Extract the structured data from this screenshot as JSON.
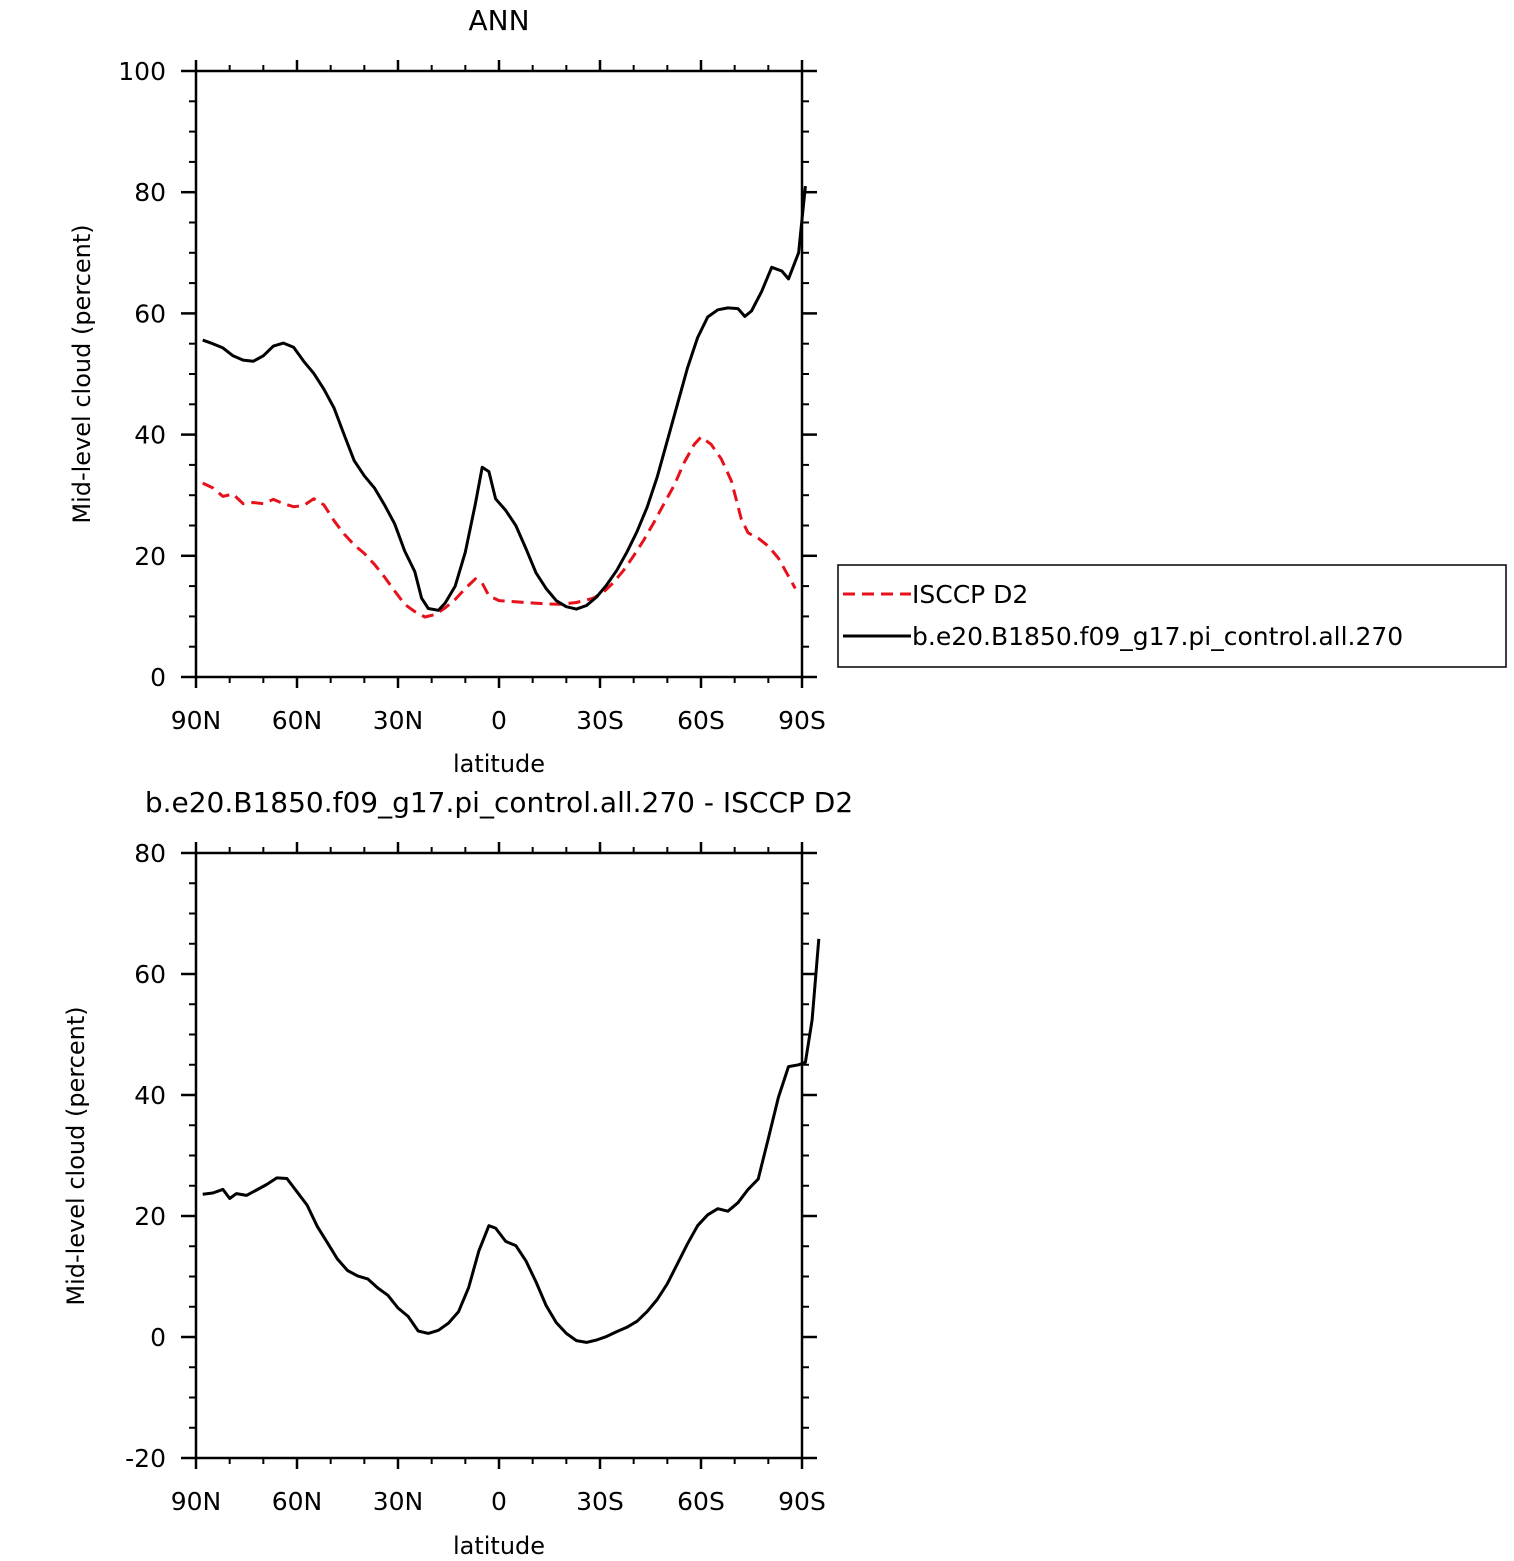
{
  "chart_data": [
    {
      "type": "line",
      "title": "ANN",
      "xlabel": "latitude",
      "ylabel": "Mid-level cloud (percent)",
      "xlim": [
        -90,
        90
      ],
      "ylim": [
        0,
        100
      ],
      "x_ticks": [
        -90,
        -60,
        -30,
        0,
        30,
        60,
        90
      ],
      "x_tick_labels": [
        "90N",
        "60N",
        "30N",
        "0",
        "30S",
        "60S",
        "90S"
      ],
      "y_ticks": [
        0,
        20,
        40,
        60,
        80,
        100
      ],
      "y_tick_labels": [
        "0",
        "20",
        "40",
        "60",
        "80",
        "100"
      ],
      "legend": "right",
      "series": [
        {
          "name": "ISCCP D2",
          "color": "#e8101a",
          "dash": "dashed",
          "points": [
            [
              -88,
              32
            ],
            [
              -85,
              31.2
            ],
            [
              -82,
              29.8
            ],
            [
              -79,
              30.2
            ],
            [
              -76,
              28.6
            ],
            [
              -73,
              28.8
            ],
            [
              -70,
              28.6
            ],
            [
              -67,
              29.3
            ],
            [
              -64,
              28.6
            ],
            [
              -61,
              28.1
            ],
            [
              -58,
              28.3
            ],
            [
              -55,
              29.4
            ],
            [
              -52,
              28.4
            ],
            [
              -49,
              25.8
            ],
            [
              -46,
              23.6
            ],
            [
              -43,
              21.8
            ],
            [
              -40,
              20.4
            ],
            [
              -37,
              18.6
            ],
            [
              -34,
              16.5
            ],
            [
              -31,
              14.2
            ],
            [
              -28,
              12.0
            ],
            [
              -25,
              10.8
            ],
            [
              -22,
              9.9
            ],
            [
              -19,
              10.3
            ],
            [
              -16,
              11.4
            ],
            [
              -13,
              12.8
            ],
            [
              -10,
              14.6
            ],
            [
              -7,
              16.2
            ],
            [
              -5,
              15.5
            ],
            [
              -3,
              13.4
            ],
            [
              0,
              12.6
            ],
            [
              3,
              12.5
            ],
            [
              8,
              12.3
            ],
            [
              13,
              12.1
            ],
            [
              18,
              12.0
            ],
            [
              23,
              12.3
            ],
            [
              28,
              13.0
            ],
            [
              31,
              14.0
            ],
            [
              34,
              15.6
            ],
            [
              37,
              17.6
            ],
            [
              40,
              20.0
            ],
            [
              43,
              22.6
            ],
            [
              46,
              25.5
            ],
            [
              49,
              28.6
            ],
            [
              52,
              31.6
            ],
            [
              55,
              35.4
            ],
            [
              58,
              38.4
            ],
            [
              60,
              39.6
            ],
            [
              63,
              38.4
            ],
            [
              66,
              36.0
            ],
            [
              69,
              32.4
            ],
            [
              72,
              26.0
            ],
            [
              74,
              23.8
            ],
            [
              77,
              22.9
            ],
            [
              80,
              21.6
            ],
            [
              83,
              19.6
            ],
            [
              85,
              17.6
            ],
            [
              88,
              14.6
            ]
          ]
        },
        {
          "name": "b.e20.B1850.f09_g17.pi_control.all.270",
          "color": "#000000",
          "dash": "solid",
          "points": [
            [
              -88,
              55.6
            ],
            [
              -85,
              55.0
            ],
            [
              -82,
              54.3
            ],
            [
              -79,
              53.0
            ],
            [
              -76,
              52.3
            ],
            [
              -73,
              52.1
            ],
            [
              -70,
              53.0
            ],
            [
              -67,
              54.6
            ],
            [
              -64,
              55.1
            ],
            [
              -61,
              54.4
            ],
            [
              -58,
              52.1
            ],
            [
              -55,
              50.1
            ],
            [
              -52,
              47.5
            ],
            [
              -49,
              44.4
            ],
            [
              -46,
              40.0
            ],
            [
              -43,
              35.7
            ],
            [
              -40,
              33.2
            ],
            [
              -37,
              31.2
            ],
            [
              -34,
              28.4
            ],
            [
              -31,
              25.3
            ],
            [
              -28,
              20.8
            ],
            [
              -25,
              17.4
            ],
            [
              -23,
              13.0
            ],
            [
              -21,
              11.3
            ],
            [
              -18,
              11.0
            ],
            [
              -16,
              12.2
            ],
            [
              -13,
              15.0
            ],
            [
              -10,
              20.6
            ],
            [
              -7,
              28.6
            ],
            [
              -5,
              34.6
            ],
            [
              -3,
              33.9
            ],
            [
              -1,
              29.4
            ],
            [
              2,
              27.5
            ],
            [
              5,
              25.0
            ],
            [
              8,
              21.2
            ],
            [
              11,
              17.2
            ],
            [
              14,
              14.6
            ],
            [
              17,
              12.6
            ],
            [
              20,
              11.6
            ],
            [
              23,
              11.2
            ],
            [
              26,
              11.8
            ],
            [
              29,
              13.2
            ],
            [
              32,
              15.2
            ],
            [
              35,
              17.6
            ],
            [
              38,
              20.6
            ],
            [
              41,
              24.0
            ],
            [
              44,
              28.0
            ],
            [
              47,
              33.0
            ],
            [
              50,
              39.0
            ],
            [
              53,
              45.0
            ],
            [
              56,
              51.0
            ],
            [
              59,
              56.0
            ],
            [
              62,
              59.4
            ],
            [
              65,
              60.6
            ],
            [
              68,
              60.9
            ],
            [
              71,
              60.8
            ],
            [
              73,
              59.5
            ],
            [
              75,
              60.4
            ],
            [
              78,
              63.6
            ],
            [
              81,
              67.6
            ],
            [
              84,
              67.0
            ],
            [
              86,
              65.7
            ],
            [
              89,
              70.0
            ],
            [
              91,
              81.0
            ]
          ]
        }
      ]
    },
    {
      "type": "line",
      "title": "b.e20.B1850.f09_g17.pi_control.all.270 - ISCCP D2",
      "xlabel": "latitude",
      "ylabel": "Mid-level cloud (percent)",
      "xlim": [
        -90,
        90
      ],
      "ylim": [
        -20,
        80
      ],
      "x_ticks": [
        -90,
        -60,
        -30,
        0,
        30,
        60,
        90
      ],
      "x_tick_labels": [
        "90N",
        "60N",
        "30N",
        "0",
        "30S",
        "60S",
        "90S"
      ],
      "y_ticks": [
        -20,
        0,
        20,
        40,
        60,
        80
      ],
      "y_tick_labels": [
        "-20",
        "0",
        "20",
        "40",
        "60",
        "80"
      ],
      "series": [
        {
          "color": "#000000",
          "dash": "solid",
          "points": [
            [
              -88,
              23.6
            ],
            [
              -85,
              23.8
            ],
            [
              -82,
              24.4
            ],
            [
              -80,
              22.9
            ],
            [
              -78,
              23.7
            ],
            [
              -75,
              23.4
            ],
            [
              -72,
              24.3
            ],
            [
              -69,
              25.2
            ],
            [
              -66,
              26.3
            ],
            [
              -63,
              26.2
            ],
            [
              -60,
              24.0
            ],
            [
              -57,
              21.8
            ],
            [
              -54,
              18.3
            ],
            [
              -51,
              15.6
            ],
            [
              -48,
              12.9
            ],
            [
              -45,
              11.0
            ],
            [
              -42,
              10.1
            ],
            [
              -39,
              9.6
            ],
            [
              -36,
              8.1
            ],
            [
              -33,
              6.9
            ],
            [
              -30,
              4.8
            ],
            [
              -27,
              3.4
            ],
            [
              -24,
              1.0
            ],
            [
              -21,
              0.6
            ],
            [
              -18,
              1.1
            ],
            [
              -15,
              2.3
            ],
            [
              -12,
              4.2
            ],
            [
              -9,
              8.2
            ],
            [
              -6,
              14.2
            ],
            [
              -3,
              18.4
            ],
            [
              -1,
              18.0
            ],
            [
              2,
              15.8
            ],
            [
              5,
              15.1
            ],
            [
              8,
              12.6
            ],
            [
              11,
              9.1
            ],
            [
              14,
              5.2
            ],
            [
              17,
              2.4
            ],
            [
              20,
              0.6
            ],
            [
              23,
              -0.6
            ],
            [
              26,
              -0.9
            ],
            [
              29,
              -0.5
            ],
            [
              32,
              0.1
            ],
            [
              35,
              0.9
            ],
            [
              38,
              1.6
            ],
            [
              41,
              2.6
            ],
            [
              44,
              4.2
            ],
            [
              47,
              6.2
            ],
            [
              50,
              8.8
            ],
            [
              53,
              12.1
            ],
            [
              56,
              15.4
            ],
            [
              59,
              18.4
            ],
            [
              62,
              20.2
            ],
            [
              65,
              21.2
            ],
            [
              68,
              20.8
            ],
            [
              71,
              22.2
            ],
            [
              74,
              24.4
            ],
            [
              77,
              26.1
            ],
            [
              80,
              32.8
            ],
            [
              83,
              39.6
            ],
            [
              86,
              44.7
            ],
            [
              89,
              45.0
            ],
            [
              91,
              45.4
            ],
            [
              93,
              52.4
            ],
            [
              95,
              65.8
            ]
          ]
        }
      ]
    }
  ]
}
